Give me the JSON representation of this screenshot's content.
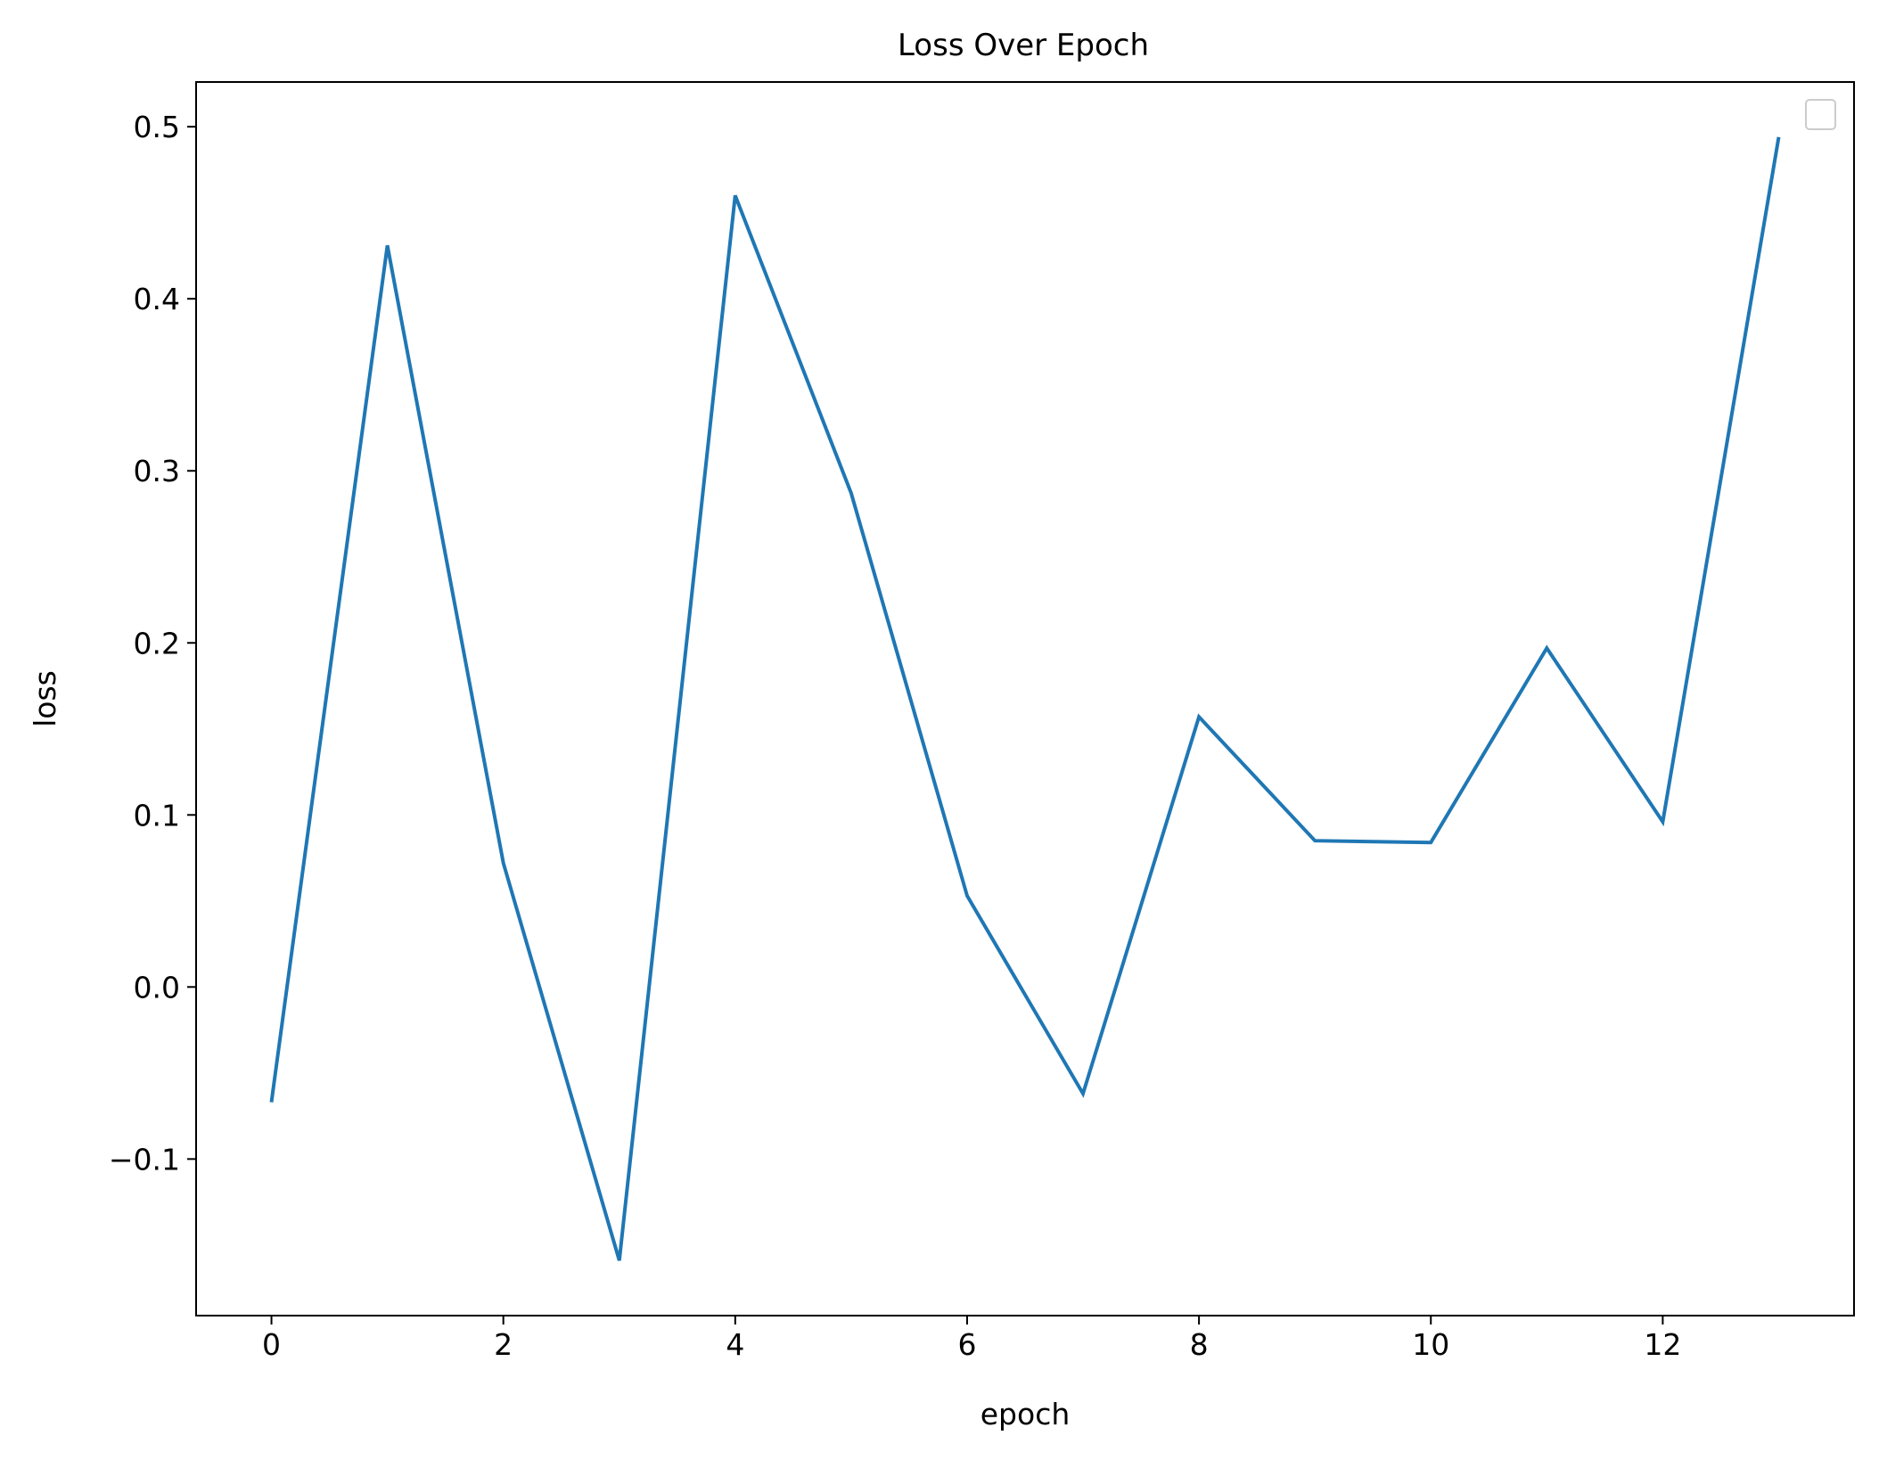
{
  "chart_data": {
    "type": "line",
    "title": "Loss Over Epoch",
    "xlabel": "epoch",
    "ylabel": "loss",
    "xlim": [
      -0.65,
      13.65
    ],
    "ylim": [
      -0.191,
      0.526
    ],
    "x_ticks": [
      0,
      2,
      4,
      6,
      8,
      10,
      12
    ],
    "x_tick_labels": [
      "0",
      "2",
      "4",
      "6",
      "8",
      "10",
      "12"
    ],
    "y_ticks": [
      -0.1,
      0.0,
      0.1,
      0.2,
      0.3,
      0.4,
      0.5
    ],
    "y_tick_labels": [
      "−0.1",
      "0.0",
      "0.1",
      "0.2",
      "0.3",
      "0.4",
      "0.5"
    ],
    "grid": false,
    "legend": {
      "location": "upper-right",
      "entries": []
    },
    "series": [
      {
        "color": "#1f77b4",
        "x": [
          0,
          1,
          2,
          3,
          4,
          5,
          6,
          7,
          8,
          9,
          10,
          11,
          12,
          13
        ],
        "y": [
          -0.067,
          0.431,
          0.072,
          -0.159,
          0.46,
          0.287,
          0.053,
          -0.062,
          0.157,
          0.085,
          0.084,
          0.197,
          0.096,
          0.494
        ]
      }
    ]
  }
}
